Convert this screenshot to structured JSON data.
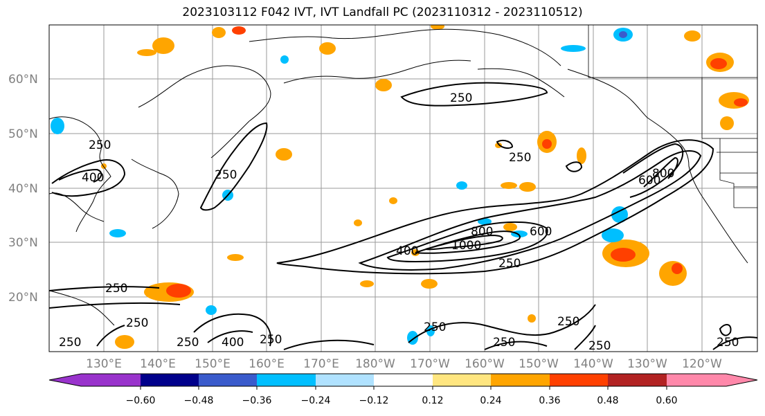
{
  "title": "2023103112 F042 IVT, IVT Landfall PC (2023110312 - 2023110512)",
  "latitude_labels": [
    "60°N",
    "50°N",
    "40°N",
    "30°N",
    "20°N"
  ],
  "longitude_labels": [
    "130°E",
    "140°E",
    "150°E",
    "160°E",
    "170°E",
    "180°W",
    "170°W",
    "160°W",
    "150°W",
    "140°W",
    "130°W",
    "120°W"
  ],
  "colorbar": {
    "ticks": [
      "−0.60",
      "−0.48",
      "−0.36",
      "−0.24",
      "−0.12",
      "0.12",
      "0.24",
      "0.36",
      "0.48",
      "0.60"
    ],
    "colors": [
      "#9933cc",
      "#00008b",
      "#3a5bcc",
      "#00bfff",
      "#b0e2ff",
      "#ffffff",
      "#ffe680",
      "#ffa500",
      "#ff4000",
      "#b22222",
      "#ff88aa"
    ]
  },
  "contour_labels": [
    "250",
    "250",
    "250",
    "400",
    "250",
    "250",
    "250",
    "600",
    "800",
    "800",
    "1000",
    "400",
    "600",
    "250",
    "250",
    "250",
    "250",
    "400",
    "250",
    "250",
    "250",
    "250",
    "250"
  ]
}
